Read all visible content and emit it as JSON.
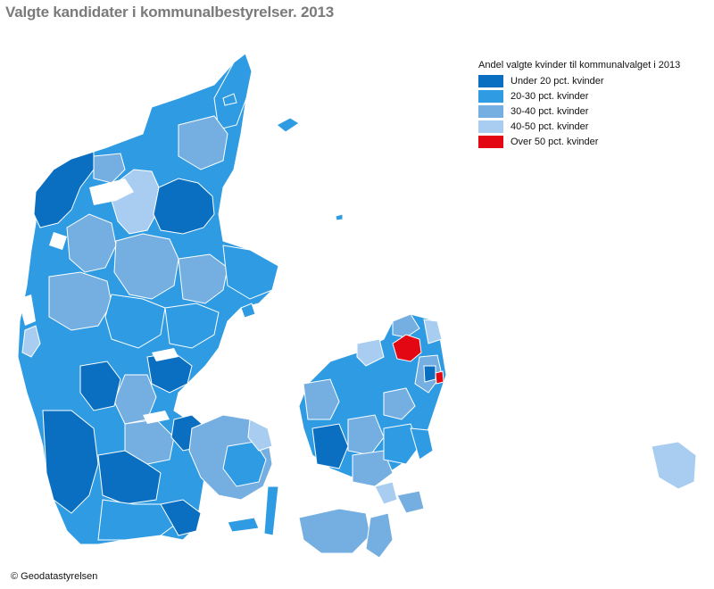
{
  "title": "Valgte kandidater i kommunalbestyrelser. 2013",
  "legend": {
    "title": "Andel valgte kvinder til kommunalvalget i 2013",
    "items": [
      {
        "label": "Under 20 pct. kvinder",
        "color": "#0a6fc0"
      },
      {
        "label": "20-30 pct. kvinder",
        "color": "#2e9be3"
      },
      {
        "label": "30-40 pct. kvinder",
        "color": "#75aee0"
      },
      {
        "label": "40-50 pct. kvinder",
        "color": "#a9cdf0"
      },
      {
        "label": "Over 50 pct. kvinder",
        "color": "#e30613"
      }
    ]
  },
  "copyright": "© Geodatastyrelsen",
  "colors": {
    "background": "#ffffff",
    "border": "#ffffff"
  }
}
